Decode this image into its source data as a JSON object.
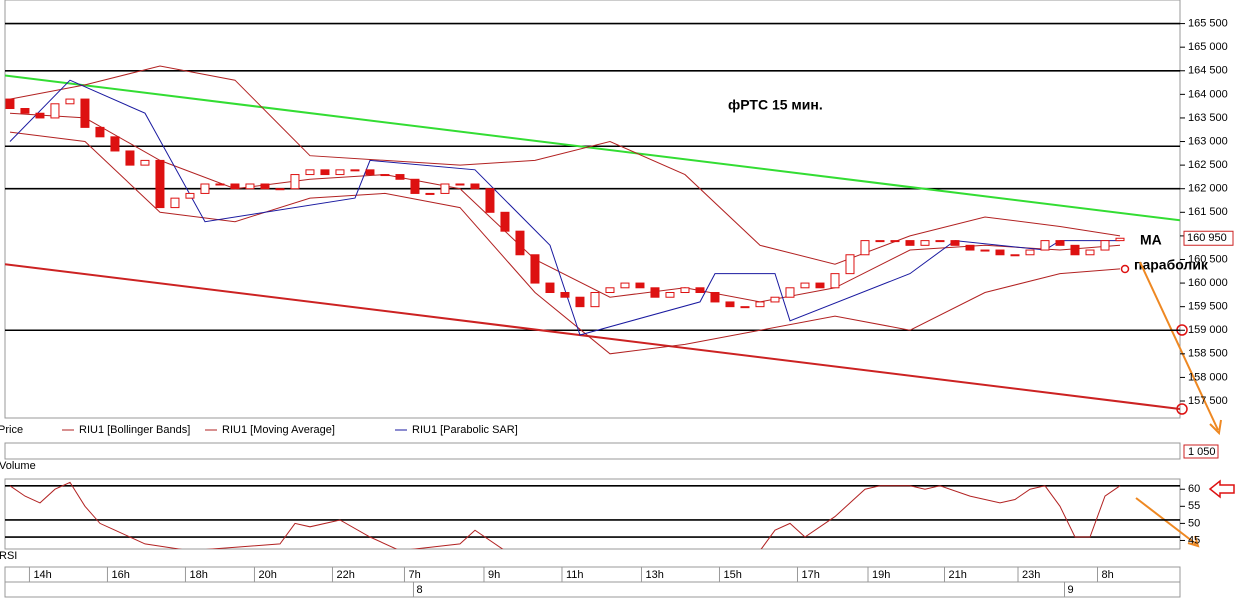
{
  "chart_data": [
    {
      "type": "candlestick",
      "price_name": "Price",
      "color": "#dd1111",
      "up_color": "#ffffff",
      "down_color": "#dd1111",
      "xlim": [
        -0.33,
        78
      ],
      "ylim": [
        157140,
        166000
      ],
      "yticks": [
        {
          "value": 165500,
          "label": "165 500"
        },
        {
          "value": 165000,
          "label": "165 000"
        },
        {
          "value": 164500,
          "label": "164 500"
        },
        {
          "value": 164000,
          "label": "164 000"
        },
        {
          "value": 163500,
          "label": "163 500"
        },
        {
          "value": 163000,
          "label": "163 000"
        },
        {
          "value": 162500,
          "label": "162 500"
        },
        {
          "value": 162000,
          "label": "162 000"
        },
        {
          "value": 161500,
          "label": "161 500"
        },
        {
          "value": 161000,
          "label": "161 000"
        },
        {
          "value": 160500,
          "label": "160 500"
        },
        {
          "value": 160000,
          "label": "160 000"
        },
        {
          "value": 159500,
          "label": "159 500"
        },
        {
          "value": 159000,
          "label": "159 000"
        },
        {
          "value": 158500,
          "label": "158 500"
        },
        {
          "value": 158000,
          "label": "158 000"
        },
        {
          "value": 157500,
          "label": "157 500"
        }
      ],
      "levels": [
        165500,
        164500,
        162900,
        162000,
        159000
      ],
      "level_color": "#000000",
      "open": [
        163900,
        163700,
        163600,
        163500,
        163800,
        163900,
        163300,
        163100,
        162800,
        162500,
        162600,
        161600,
        161800,
        161900,
        162100,
        162100,
        162000,
        162100,
        162000,
        162000,
        162300,
        162400,
        162300,
        162400,
        162400,
        162300,
        162300,
        162200,
        161900,
        161900,
        162100,
        162100,
        162000,
        161500,
        161100,
        160600,
        160000,
        159800,
        159700,
        159500,
        159800,
        159900,
        160000,
        159900,
        159700,
        159800,
        159900,
        159800,
        159600,
        159500,
        159500,
        159600,
        159700,
        159900,
        160000,
        159900,
        160200,
        160600,
        160900,
        160900,
        160900,
        160800,
        160900,
        160900,
        160800,
        160700,
        160700,
        160600,
        160600,
        160700,
        160900,
        160800,
        160600,
        160700,
        160900
      ],
      "close": [
        163700,
        163600,
        163500,
        163800,
        163900,
        163300,
        163100,
        162800,
        162500,
        162600,
        161600,
        161800,
        161900,
        162100,
        162100,
        162000,
        162100,
        162000,
        162000,
        162300,
        162400,
        162300,
        162400,
        162400,
        162300,
        162300,
        162200,
        161900,
        161900,
        162100,
        162100,
        162000,
        161500,
        161100,
        160600,
        160000,
        159800,
        159700,
        159500,
        159800,
        159900,
        160000,
        159900,
        159700,
        159800,
        159900,
        159800,
        159600,
        159500,
        159500,
        159600,
        159700,
        159900,
        160000,
        159900,
        160200,
        160600,
        160900,
        160900,
        160900,
        160800,
        160900,
        160900,
        160800,
        160700,
        160700,
        160600,
        160600,
        160700,
        160900,
        160800,
        160600,
        160700,
        160900,
        160950
      ],
      "indicators": [
        {
          "name": "RIU1 [Bollinger Bands]",
          "color": "#b22222",
          "x": [
            0,
            5,
            10,
            15,
            20,
            25,
            30,
            35,
            40,
            45,
            50,
            55,
            60,
            65,
            70,
            74
          ],
          "upper": [
            163900,
            164200,
            164600,
            164300,
            162700,
            162600,
            162500,
            162600,
            163000,
            162300,
            160800,
            160400,
            161000,
            161400,
            161200,
            161000
          ],
          "lower": [
            163200,
            163000,
            161500,
            161300,
            161800,
            161900,
            161600,
            159800,
            158500,
            158700,
            159000,
            159300,
            159000,
            159800,
            160200,
            160300
          ]
        },
        {
          "name": "RIU1 [Moving Average]",
          "color": "#b22222",
          "x": [
            0,
            5,
            10,
            15,
            20,
            25,
            30,
            35,
            40,
            45,
            50,
            55,
            60,
            65,
            70,
            74
          ],
          "values": [
            163600,
            163500,
            162600,
            162000,
            162200,
            162300,
            162000,
            160500,
            159700,
            159900,
            159600,
            159900,
            160700,
            160800,
            160700,
            160800
          ]
        },
        {
          "name": "RIU1 [Parabolic SAR]",
          "color": "#1a1aa0",
          "x": [
            0,
            4,
            9,
            13,
            23,
            24,
            31,
            36,
            38,
            46,
            47,
            51,
            52,
            60,
            63,
            69,
            70,
            74
          ],
          "values": [
            163000,
            164300,
            163600,
            161300,
            161800,
            162600,
            162400,
            160800,
            158900,
            159600,
            160200,
            160200,
            159200,
            160200,
            160900,
            160700,
            160900,
            160900
          ]
        }
      ],
      "trendlines": [
        {
          "color": "#33dd33",
          "x": [
            -0.33,
            78
          ],
          "values": [
            164400,
            161330
          ]
        },
        {
          "color": "#cc2222",
          "x": [
            -0.33,
            78
          ],
          "values": [
            160400,
            157330
          ]
        }
      ],
      "last_value": 160950,
      "last_value_label": "160 950",
      "annotations": [
        "фРТС   15 мин.",
        "MA",
        "параболик"
      ]
    },
    {
      "type": "volume",
      "ylabel": "Volume",
      "last_value": 1050,
      "last_value_label": "1 050"
    },
    {
      "type": "line",
      "ylabel": "RSI",
      "color": "#b22222",
      "xlim": [
        -0.33,
        78
      ],
      "ylim": [
        42.5,
        63
      ],
      "yticks": [
        45,
        50,
        55,
        60
      ],
      "levels": [
        61,
        51,
        46
      ],
      "level_color": "#000000",
      "x": [
        0,
        1,
        2,
        3,
        4,
        5,
        6,
        7,
        9,
        12,
        18,
        19,
        20,
        22,
        24,
        26,
        30,
        31,
        33,
        50,
        51,
        52,
        53,
        55,
        57,
        58,
        60,
        61,
        62,
        64,
        66,
        67,
        68,
        69,
        70,
        71,
        72,
        73,
        74
      ],
      "values": [
        61,
        58,
        56,
        60,
        62,
        55,
        50,
        48,
        44,
        42,
        44,
        50,
        49,
        51,
        46,
        42,
        44,
        48,
        42,
        42,
        48,
        50,
        46,
        52,
        60,
        61,
        61,
        60,
        61,
        58,
        56,
        57,
        60,
        61,
        55,
        46,
        46,
        58,
        61
      ],
      "xticks": [
        {
          "value": 1.3,
          "label": "14h"
        },
        {
          "value": 6.5,
          "label": "16h"
        },
        {
          "value": 11.7,
          "label": "18h"
        },
        {
          "value": 16.3,
          "label": "20h"
        },
        {
          "value": 21.5,
          "label": "22h"
        },
        {
          "value": 26.3,
          "label": "7h"
        },
        {
          "value": 31.6,
          "label": "9h"
        },
        {
          "value": 36.8,
          "label": "11h"
        },
        {
          "value": 42.1,
          "label": "13h"
        },
        {
          "value": 47.3,
          "label": "15h"
        },
        {
          "value": 52.5,
          "label": "17h"
        },
        {
          "value": 57.2,
          "label": "19h"
        },
        {
          "value": 62.3,
          "label": "21h"
        },
        {
          "value": 67.2,
          "label": "23h"
        },
        {
          "value": 72.5,
          "label": "8h"
        }
      ],
      "date_ticks": [
        {
          "value": 26.9,
          "label": "8"
        },
        {
          "value": 70.3,
          "label": "9"
        }
      ]
    }
  ]
}
